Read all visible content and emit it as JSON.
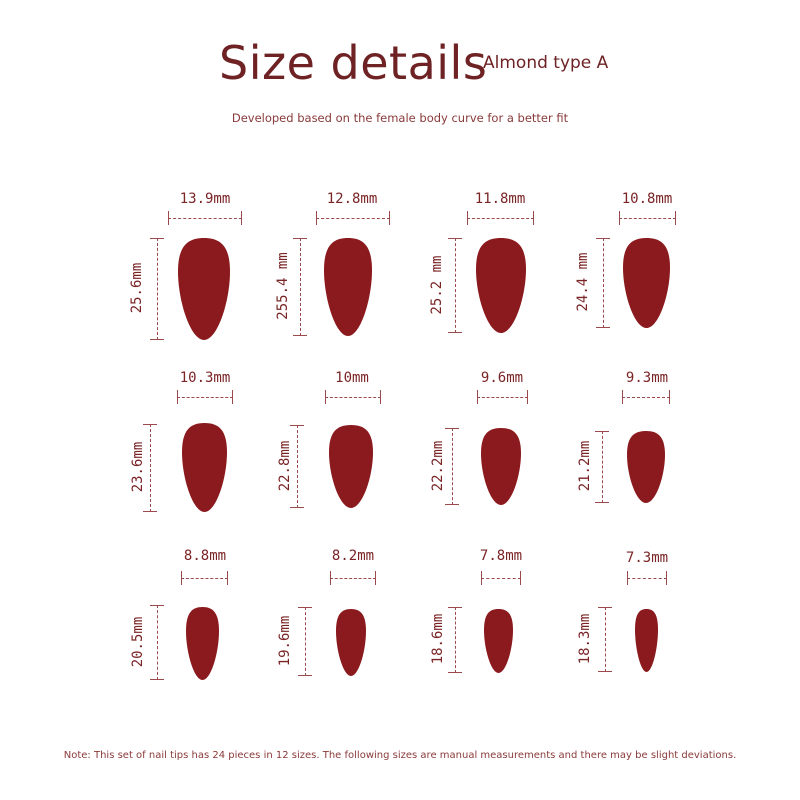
{
  "header": {
    "title": "Size details",
    "subtitle": "Almond type A",
    "tagline": "Developed based on the female body curve for a better fit"
  },
  "colors": {
    "nail": "#8b1a1e",
    "text": "#6e2224"
  },
  "nails": [
    {
      "width": "13.9mm",
      "length": "25.6mm"
    },
    {
      "width": "12.8mm",
      "length": "255.4 mm"
    },
    {
      "width": "11.8mm",
      "length": "25.2 mm"
    },
    {
      "width": "10.8mm",
      "length": "24.4 mm"
    },
    {
      "width": "10.3mm",
      "length": "23.6mm"
    },
    {
      "width": "10mm",
      "length": "22.8mm"
    },
    {
      "width": "9.6mm",
      "length": "22.2mm"
    },
    {
      "width": "9.3mm",
      "length": "21.2mm"
    },
    {
      "width": "8.8mm",
      "length": "20.5mm"
    },
    {
      "width": "8.2mm",
      "length": "19.6mm"
    },
    {
      "width": "7.8mm",
      "length": "18.6mm"
    },
    {
      "width": "7.3mm",
      "length": "18.3mm"
    }
  ],
  "footer": {
    "note": "Note: This set of nail tips has 24 pieces in 12 sizes. The following sizes are manual measurements and there may be slight deviations."
  }
}
